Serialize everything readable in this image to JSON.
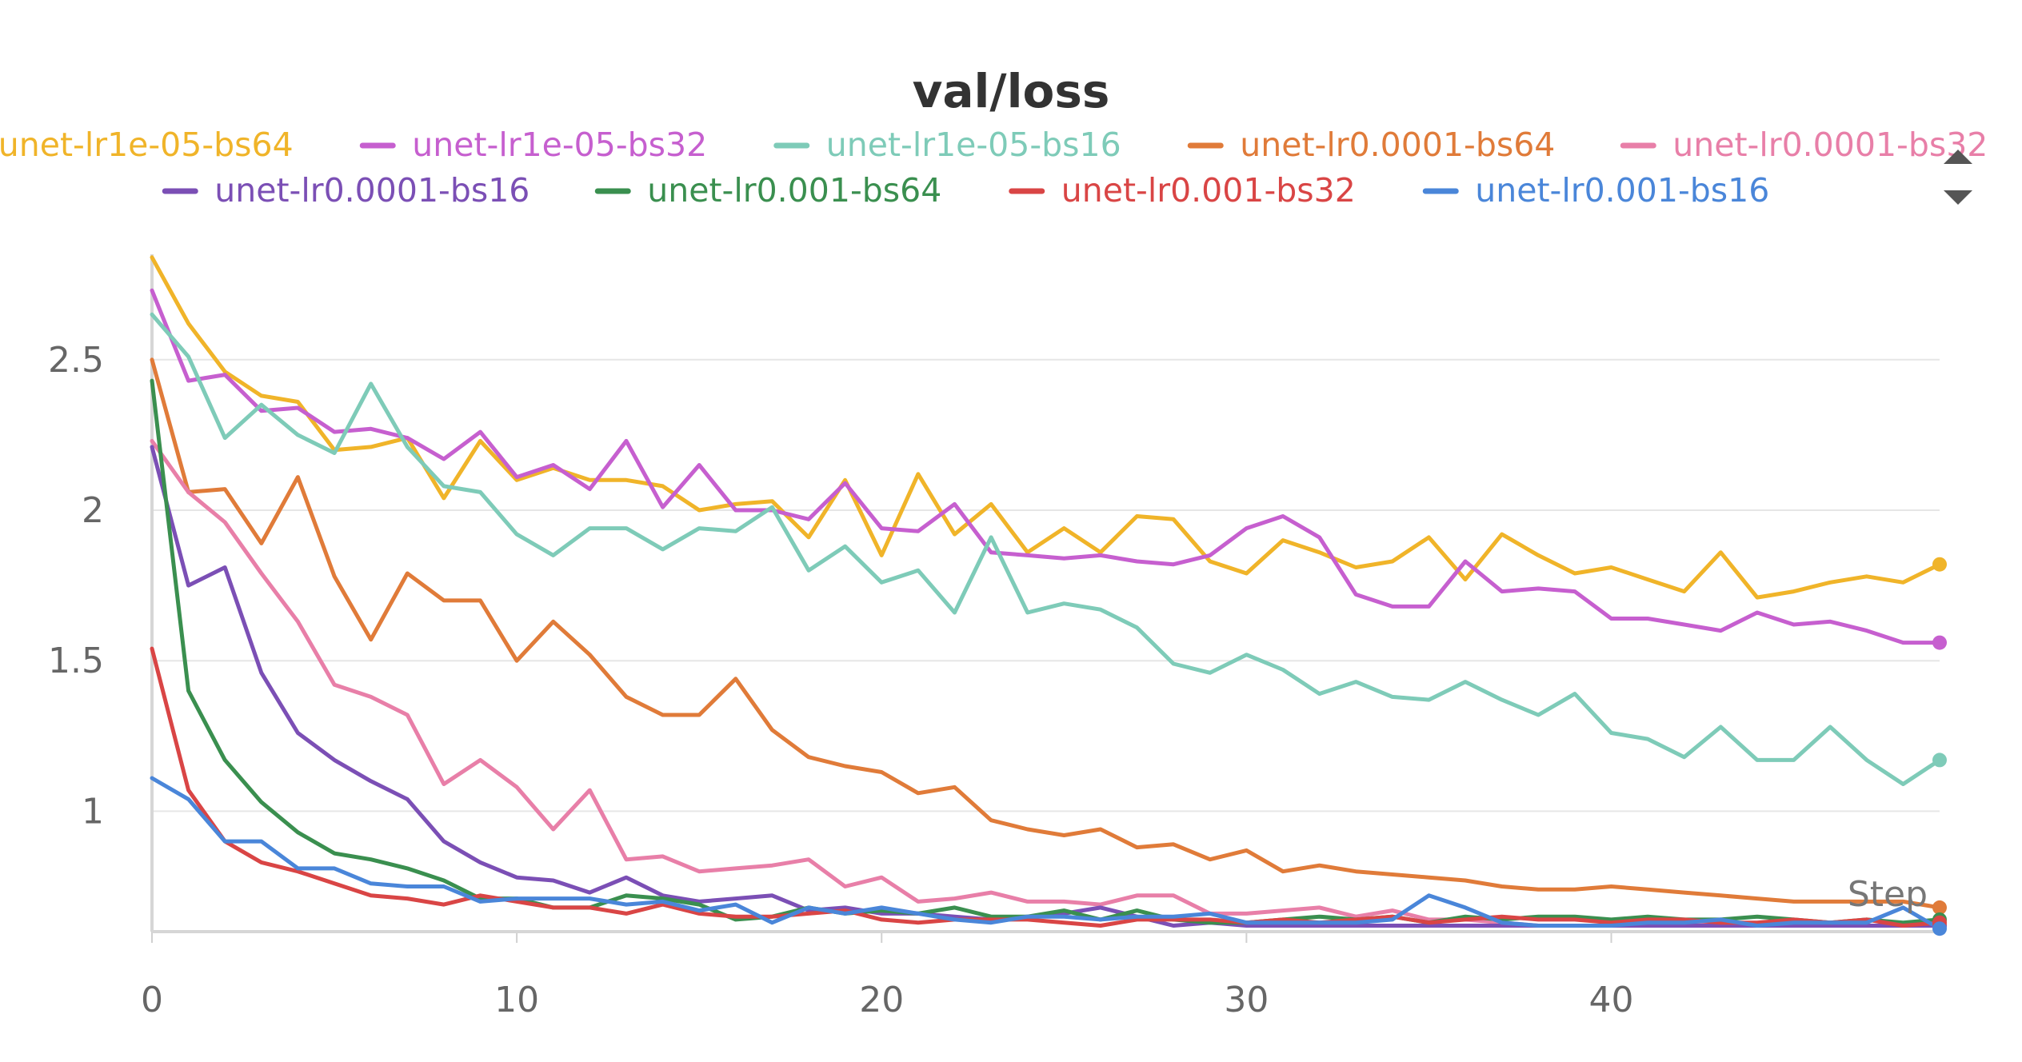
{
  "chart_data": {
    "type": "line",
    "title": "val/loss",
    "xlabel": "Step",
    "ylabel": "",
    "xlim": [
      0,
      49
    ],
    "ylim": [
      0.6,
      2.85
    ],
    "x_ticks": [
      0,
      10,
      20,
      30,
      40
    ],
    "y_ticks": [
      1,
      1.5,
      2,
      2.5
    ],
    "x_tick_labels": [
      "0",
      "10",
      "20",
      "30",
      "40"
    ],
    "y_tick_labels": [
      "1",
      "1.5",
      "2",
      "2.5"
    ],
    "grid": true,
    "legend": "top",
    "series": [
      {
        "name": "unet-lr1e-05-bs64",
        "color": "#f0b429",
        "values": [
          2.84,
          2.62,
          2.46,
          2.38,
          2.36,
          2.2,
          2.21,
          2.24,
          2.04,
          2.23,
          2.1,
          2.14,
          2.1,
          2.1,
          2.08,
          2.0,
          2.02,
          2.03,
          1.91,
          2.1,
          1.85,
          2.12,
          1.92,
          2.02,
          1.86,
          1.94,
          1.86,
          1.98,
          1.97,
          1.83,
          1.79,
          1.9,
          1.86,
          1.81,
          1.83,
          1.91,
          1.77,
          1.92,
          1.85,
          1.79,
          1.81,
          1.77,
          1.73,
          1.86,
          1.71,
          1.73,
          1.76,
          1.78,
          1.76,
          1.82
        ]
      },
      {
        "name": "unet-lr1e-05-bs32",
        "color": "#c65fcf",
        "values": [
          2.73,
          2.43,
          2.45,
          2.33,
          2.34,
          2.26,
          2.27,
          2.24,
          2.17,
          2.26,
          2.11,
          2.15,
          2.07,
          2.23,
          2.01,
          2.15,
          2.0,
          2.0,
          1.97,
          2.09,
          1.94,
          1.93,
          2.02,
          1.86,
          1.85,
          1.84,
          1.85,
          1.83,
          1.82,
          1.85,
          1.94,
          1.98,
          1.91,
          1.72,
          1.68,
          1.68,
          1.83,
          1.73,
          1.74,
          1.73,
          1.64,
          1.64,
          1.62,
          1.6,
          1.66,
          1.62,
          1.63,
          1.6,
          1.56,
          1.56
        ]
      },
      {
        "name": "unet-lr1e-05-bs16",
        "color": "#7ecbb8",
        "values": [
          2.65,
          2.51,
          2.24,
          2.35,
          2.25,
          2.19,
          2.42,
          2.21,
          2.08,
          2.06,
          1.92,
          1.85,
          1.94,
          1.94,
          1.87,
          1.94,
          1.93,
          2.01,
          1.8,
          1.88,
          1.76,
          1.8,
          1.66,
          1.91,
          1.66,
          1.69,
          1.67,
          1.61,
          1.49,
          1.46,
          1.52,
          1.47,
          1.39,
          1.43,
          1.38,
          1.37,
          1.43,
          1.37,
          1.32,
          1.39,
          1.26,
          1.24,
          1.18,
          1.28,
          1.17,
          1.17,
          1.28,
          1.17,
          1.09,
          1.17
        ]
      },
      {
        "name": "unet-lr0.0001-bs64",
        "color": "#e07b39",
        "values": [
          2.5,
          2.06,
          2.07,
          1.89,
          2.11,
          1.78,
          1.57,
          1.79,
          1.7,
          1.7,
          1.5,
          1.63,
          1.52,
          1.38,
          1.32,
          1.32,
          1.44,
          1.27,
          1.18,
          1.15,
          1.13,
          1.06,
          1.08,
          0.97,
          0.94,
          0.92,
          0.94,
          0.88,
          0.89,
          0.84,
          0.87,
          0.8,
          0.82,
          0.8,
          0.79,
          0.78,
          0.77,
          0.75,
          0.74,
          0.74,
          0.75,
          0.74,
          0.73,
          0.72,
          0.71,
          0.7,
          0.7,
          0.7,
          0.7,
          0.68
        ]
      },
      {
        "name": "unet-lr0.0001-bs32",
        "color": "#e87fa8",
        "values": [
          2.23,
          2.06,
          1.96,
          1.79,
          1.63,
          1.42,
          1.38,
          1.32,
          1.09,
          1.17,
          1.08,
          0.94,
          1.07,
          0.84,
          0.85,
          0.8,
          0.81,
          0.82,
          0.84,
          0.75,
          0.78,
          0.7,
          0.71,
          0.73,
          0.7,
          0.7,
          0.69,
          0.72,
          0.72,
          0.66,
          0.66,
          0.67,
          0.68,
          0.65,
          0.67,
          0.64,
          0.64,
          0.63,
          0.62,
          0.62,
          0.62,
          0.63,
          0.63,
          0.63,
          0.62,
          0.63,
          0.62,
          0.62,
          0.62,
          0.62
        ]
      },
      {
        "name": "unet-lr0.0001-bs16",
        "color": "#7b4fb5",
        "values": [
          2.21,
          1.75,
          1.81,
          1.46,
          1.26,
          1.17,
          1.1,
          1.04,
          0.9,
          0.83,
          0.78,
          0.77,
          0.73,
          0.78,
          0.72,
          0.7,
          0.71,
          0.72,
          0.67,
          0.68,
          0.66,
          0.66,
          0.65,
          0.64,
          0.65,
          0.66,
          0.68,
          0.65,
          0.62,
          0.63,
          0.62,
          0.62,
          0.62,
          0.62,
          0.62,
          0.62,
          0.62,
          0.62,
          0.62,
          0.62,
          0.62,
          0.62,
          0.62,
          0.62,
          0.62,
          0.62,
          0.62,
          0.62,
          0.62,
          0.62
        ]
      },
      {
        "name": "unet-lr0.001-bs64",
        "color": "#3a8f4f",
        "values": [
          2.43,
          1.4,
          1.17,
          1.03,
          0.93,
          0.86,
          0.84,
          0.81,
          0.77,
          0.71,
          0.71,
          0.68,
          0.68,
          0.72,
          0.71,
          0.69,
          0.64,
          0.65,
          0.68,
          0.66,
          0.67,
          0.66,
          0.68,
          0.65,
          0.65,
          0.67,
          0.64,
          0.67,
          0.64,
          0.63,
          0.63,
          0.64,
          0.65,
          0.64,
          0.65,
          0.63,
          0.65,
          0.64,
          0.65,
          0.65,
          0.64,
          0.65,
          0.64,
          0.64,
          0.65,
          0.64,
          0.63,
          0.64,
          0.63,
          0.64
        ]
      },
      {
        "name": "unet-lr0.001-bs32",
        "color": "#d94545",
        "values": [
          1.54,
          1.07,
          0.9,
          0.83,
          0.8,
          0.76,
          0.72,
          0.71,
          0.69,
          0.72,
          0.7,
          0.68,
          0.68,
          0.66,
          0.69,
          0.66,
          0.65,
          0.65,
          0.66,
          0.67,
          0.64,
          0.63,
          0.64,
          0.64,
          0.64,
          0.63,
          0.62,
          0.64,
          0.64,
          0.64,
          0.63,
          0.64,
          0.63,
          0.64,
          0.65,
          0.63,
          0.64,
          0.65,
          0.64,
          0.64,
          0.63,
          0.64,
          0.64,
          0.63,
          0.63,
          0.64,
          0.63,
          0.64,
          0.62,
          0.63
        ]
      },
      {
        "name": "unet-lr0.001-bs16",
        "color": "#4a86d9",
        "values": [
          1.11,
          1.04,
          0.9,
          0.9,
          0.81,
          0.81,
          0.76,
          0.75,
          0.75,
          0.7,
          0.71,
          0.71,
          0.71,
          0.69,
          0.7,
          0.67,
          0.69,
          0.63,
          0.68,
          0.66,
          0.68,
          0.66,
          0.64,
          0.63,
          0.65,
          0.65,
          0.64,
          0.65,
          0.65,
          0.66,
          0.63,
          0.63,
          0.63,
          0.63,
          0.64,
          0.72,
          0.68,
          0.63,
          0.62,
          0.62,
          0.62,
          0.63,
          0.63,
          0.64,
          0.62,
          0.63,
          0.63,
          0.63,
          0.68,
          0.61
        ]
      }
    ]
  }
}
